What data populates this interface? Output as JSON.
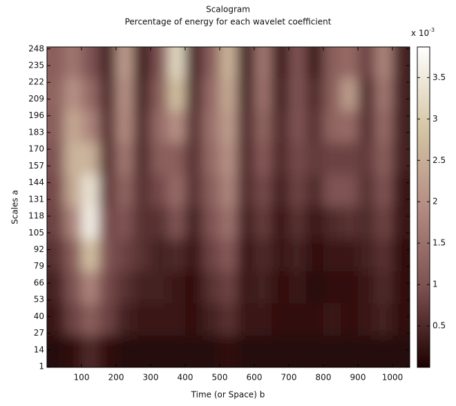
{
  "chart_data": {
    "type": "heatmap",
    "title": "Scalogram",
    "subtitle": "Percentage of energy for each wavelet coefficient",
    "x_label": "Time (or Space) b",
    "y_label": "Scales a",
    "x": [
      25,
      75,
      125,
      175,
      225,
      275,
      325,
      375,
      425,
      475,
      525,
      575,
      625,
      675,
      725,
      775,
      825,
      875,
      925,
      975,
      1025
    ],
    "y": [
      13,
      38,
      63,
      88,
      113,
      138,
      163,
      188,
      213,
      238
    ],
    "values": [
      [
        0.1,
        0.2,
        0.5,
        0.2,
        0.1,
        0.1,
        0.1,
        0.1,
        0.1,
        0.1,
        0.2,
        0.1,
        0.1,
        0.1,
        0.1,
        0.1,
        0.1,
        0.1,
        0.1,
        0.1,
        0.1
      ],
      [
        0.3,
        0.8,
        1.2,
        0.8,
        0.4,
        0.3,
        0.3,
        0.3,
        0.2,
        0.4,
        0.6,
        0.3,
        0.3,
        0.2,
        0.2,
        0.2,
        0.3,
        0.2,
        0.3,
        0.4,
        0.2
      ],
      [
        0.4,
        1.0,
        1.8,
        0.9,
        0.6,
        0.4,
        0.4,
        0.3,
        0.2,
        0.6,
        0.8,
        0.3,
        0.4,
        0.2,
        0.3,
        0.1,
        0.2,
        0.2,
        0.3,
        0.5,
        0.2
      ],
      [
        0.6,
        1.2,
        2.8,
        1.0,
        0.8,
        0.6,
        0.4,
        0.5,
        0.3,
        0.8,
        1.1,
        0.3,
        0.5,
        0.3,
        0.4,
        0.2,
        0.3,
        0.3,
        0.4,
        0.6,
        0.2
      ],
      [
        0.8,
        1.8,
        3.6,
        0.9,
        1.0,
        0.6,
        0.6,
        1.0,
        0.4,
        1.0,
        1.5,
        0.4,
        0.7,
        0.3,
        0.6,
        0.3,
        0.5,
        0.6,
        0.5,
        0.8,
        0.3
      ],
      [
        0.9,
        2.4,
        3.4,
        0.7,
        1.3,
        0.6,
        0.9,
        1.4,
        0.6,
        1.2,
        1.8,
        0.5,
        0.9,
        0.4,
        0.8,
        0.5,
        1.0,
        1.0,
        0.6,
        1.0,
        0.3
      ],
      [
        1.0,
        2.6,
        2.6,
        0.6,
        1.6,
        0.5,
        1.2,
        1.2,
        0.6,
        1.4,
        2.0,
        0.5,
        1.1,
        0.5,
        0.9,
        0.7,
        0.8,
        0.8,
        0.7,
        1.2,
        0.4
      ],
      [
        1.2,
        2.4,
        1.8,
        0.6,
        1.9,
        0.5,
        1.4,
        2.0,
        0.6,
        1.5,
        2.2,
        0.5,
        1.3,
        0.5,
        1.0,
        0.6,
        1.3,
        1.4,
        0.6,
        1.4,
        0.4
      ],
      [
        1.3,
        2.0,
        1.4,
        0.5,
        2.0,
        0.4,
        1.2,
        2.8,
        0.5,
        1.4,
        2.4,
        0.4,
        1.5,
        0.4,
        1.0,
        0.5,
        1.2,
        2.2,
        0.5,
        1.6,
        0.4
      ],
      [
        1.2,
        1.6,
        1.0,
        0.4,
        2.2,
        0.3,
        1.0,
        3.2,
        0.4,
        1.2,
        2.6,
        0.3,
        1.6,
        0.3,
        1.0,
        0.3,
        1.2,
        1.4,
        0.8,
        1.8,
        0.4
      ]
    ],
    "xlim": [
      0,
      1050
    ],
    "ylim": [
      0.5,
      249.5
    ],
    "xticks": [
      100,
      200,
      300,
      400,
      500,
      600,
      700,
      800,
      900,
      1000
    ],
    "yticks": [
      1,
      14,
      27,
      40,
      53,
      66,
      79,
      92,
      105,
      118,
      131,
      144,
      157,
      170,
      183,
      196,
      209,
      222,
      235,
      248
    ],
    "clim": [
      0,
      3.87
    ],
    "cticks": [
      0.5,
      1,
      1.5,
      2,
      2.5,
      3,
      3.5
    ],
    "colorbar_multiplier": {
      "base": "x 10",
      "exponent": "-3"
    },
    "colormap": [
      "#1e0000",
      "#7d5050",
      "#b48c82",
      "#d6c6a6",
      "#ffffff"
    ]
  }
}
